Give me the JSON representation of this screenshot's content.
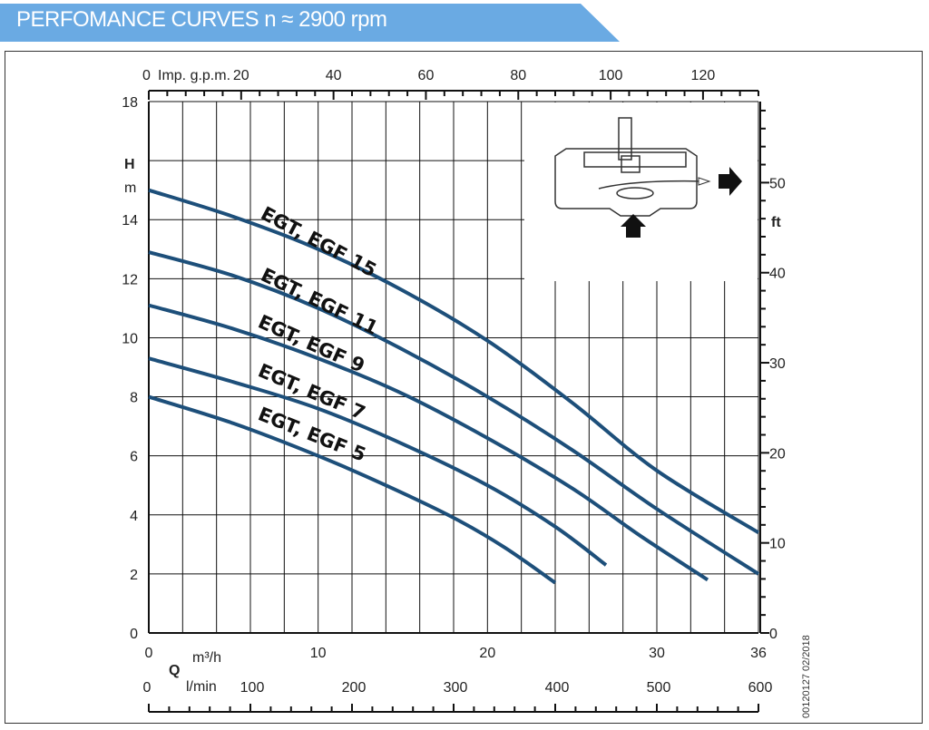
{
  "title": "PERFOMANCE CURVES n ≈ 2900 rpm",
  "side_note": "00120127 02/2018",
  "colors": {
    "banner": "#6aaae3",
    "curve": "#1d4f7a",
    "grid": "#111111"
  },
  "icon": "pump-cross-section-icon",
  "chart_data": {
    "type": "line",
    "title": "PERFOMANCE CURVES n ≈ 2900 rpm",
    "x": {
      "name": "Q",
      "unit_primary": "m³/h",
      "range": [
        0,
        36
      ],
      "ticks": [
        "0",
        "10",
        "20",
        "30",
        "36"
      ]
    },
    "x_secondary": {
      "unit": "l/min",
      "range": [
        0,
        600
      ],
      "ticks": [
        "0",
        "100",
        "200",
        "300",
        "400",
        "500",
        "600"
      ]
    },
    "x_top": {
      "unit": "Imp. g.p.m.",
      "range": [
        0,
        132
      ],
      "ticks": [
        "0",
        "20",
        "40",
        "60",
        "80",
        "100",
        "120"
      ]
    },
    "y": {
      "name": "H",
      "unit": "m",
      "range": [
        0,
        18
      ],
      "ticks": [
        "0",
        "2",
        "4",
        "6",
        "8",
        "10",
        "12",
        "14",
        "18"
      ]
    },
    "y_right": {
      "unit": "ft",
      "range": [
        0,
        59
      ],
      "ticks": [
        "0",
        "10",
        "20",
        "30",
        "40",
        "50"
      ]
    },
    "grid": true,
    "series": [
      {
        "name": "EGT, EGF 15",
        "points": [
          [
            0,
            15.0
          ],
          [
            5,
            14.1
          ],
          [
            10,
            13.0
          ],
          [
            15,
            11.6
          ],
          [
            20,
            9.9
          ],
          [
            25,
            7.8
          ],
          [
            30,
            5.5
          ],
          [
            36,
            3.4
          ]
        ]
      },
      {
        "name": "EGT, EGF 11",
        "points": [
          [
            0,
            12.9
          ],
          [
            5,
            12.1
          ],
          [
            10,
            11.0
          ],
          [
            15,
            9.6
          ],
          [
            20,
            8.0
          ],
          [
            25,
            6.2
          ],
          [
            30,
            4.2
          ],
          [
            36,
            2.0
          ]
        ]
      },
      {
        "name": "EGT, EGF 9",
        "points": [
          [
            0,
            11.1
          ],
          [
            5,
            10.3
          ],
          [
            10,
            9.3
          ],
          [
            15,
            8.1
          ],
          [
            20,
            6.6
          ],
          [
            25,
            4.9
          ],
          [
            29,
            3.3
          ],
          [
            33,
            1.8
          ]
        ]
      },
      {
        "name": "EGT, EGF 7",
        "points": [
          [
            0,
            9.3
          ],
          [
            5,
            8.5
          ],
          [
            10,
            7.6
          ],
          [
            15,
            6.4
          ],
          [
            20,
            5.0
          ],
          [
            24,
            3.6
          ],
          [
            27,
            2.3
          ]
        ]
      },
      {
        "name": "EGT, EGF 5",
        "points": [
          [
            0,
            8.0
          ],
          [
            5,
            7.1
          ],
          [
            10,
            6.0
          ],
          [
            14,
            5.0
          ],
          [
            18,
            3.9
          ],
          [
            21,
            2.9
          ],
          [
            24,
            1.7
          ]
        ]
      }
    ]
  }
}
